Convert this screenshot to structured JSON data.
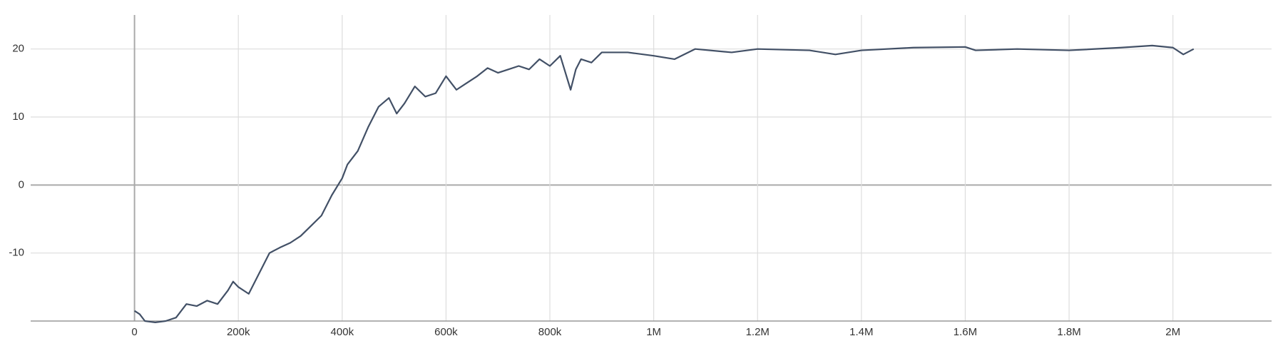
{
  "chart_data": {
    "type": "line",
    "x": [
      0,
      10000,
      20000,
      40000,
      60000,
      80000,
      100000,
      120000,
      140000,
      160000,
      180000,
      190000,
      200000,
      220000,
      240000,
      260000,
      280000,
      300000,
      320000,
      340000,
      360000,
      380000,
      400000,
      410000,
      430000,
      450000,
      470000,
      490000,
      505000,
      520000,
      540000,
      560000,
      580000,
      600000,
      620000,
      640000,
      660000,
      680000,
      700000,
      720000,
      740000,
      760000,
      780000,
      800000,
      820000,
      840000,
      850000,
      860000,
      880000,
      900000,
      950000,
      1000000,
      1040000,
      1080000,
      1150000,
      1200000,
      1300000,
      1350000,
      1400000,
      1500000,
      1600000,
      1620000,
      1700000,
      1800000,
      1900000,
      1960000,
      2000000,
      2020000,
      2040000
    ],
    "series": [
      {
        "color": "#425066",
        "values": [
          -18.5,
          -19,
          -20,
          -20.2,
          -20,
          -19.5,
          -17.5,
          -17.8,
          -17,
          -17.5,
          -15.5,
          -14.2,
          -15,
          -16,
          -13,
          -10,
          -9.2,
          -8.5,
          -7.5,
          -6,
          -4.5,
          -1.5,
          1,
          3,
          5,
          8.5,
          11.5,
          12.8,
          10.5,
          12,
          14.5,
          13,
          13.5,
          16,
          14,
          15,
          16,
          17.2,
          16.5,
          17,
          17.5,
          17,
          18.5,
          17.5,
          19,
          14,
          17,
          18.5,
          18,
          19.5,
          19.5,
          19,
          18.5,
          20,
          19.5,
          20,
          19.8,
          19.2,
          19.8,
          20.2,
          20.3,
          19.8,
          20,
          19.8,
          20.2,
          20.5,
          20.2,
          19.2,
          20
        ]
      }
    ],
    "xlim": [
      -200000,
      2190000
    ],
    "ylim": [
      -20,
      25
    ],
    "xticks": [
      0,
      {
        "value": 200000,
        "label": "200k"
      },
      {
        "value": 400000,
        "label": "400k"
      },
      {
        "value": 600000,
        "label": "600k"
      },
      {
        "value": 800000,
        "label": "800k"
      },
      {
        "value": 1000000,
        "label": "1M"
      },
      {
        "value": 1200000,
        "label": "1.2M"
      },
      {
        "value": 1400000,
        "label": "1.4M"
      },
      {
        "value": 1600000,
        "label": "1.6M"
      },
      {
        "value": 1800000,
        "label": "1.8M"
      },
      {
        "value": 2000000,
        "label": "2M"
      }
    ],
    "yticks": [
      -10,
      0,
      10,
      20
    ],
    "grid": true
  }
}
